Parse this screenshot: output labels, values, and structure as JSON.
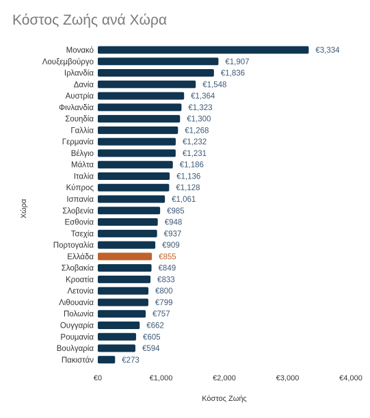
{
  "chart_data": {
    "type": "bar",
    "orientation": "horizontal",
    "title": "Κόστος Ζωής ανά Χώρα",
    "xlabel": "Κόστος Ζωής",
    "ylabel": "Χώρα",
    "xlim": [
      0,
      4000
    ],
    "x_ticks": [
      "€0",
      "€1,000",
      "€2,000",
      "€3,000",
      "€4,000"
    ],
    "grid": false,
    "colors": {
      "default": "#0f3550",
      "highlight": "#c0622b",
      "label_default": "#3d5a78",
      "label_highlight": "#c0622b"
    },
    "categories": [
      "Μονακό",
      "Λουξεμβούργο",
      "Ιρλανδία",
      "Δανία",
      "Αυστρία",
      "Φινλανδία",
      "Σουηδία",
      "Γαλλία",
      "Γερμανία",
      "Βέλγιο",
      "Μάλτα",
      "Ιταλία",
      "Κύπρος",
      "Ισπανία",
      "Σλοβενία",
      "Εσθονία",
      "Τσεχία",
      "Πορτογαλία",
      "Ελλάδα",
      "Σλοβακία",
      "Κροατία",
      "Λετονία",
      "Λιθουανία",
      "Πολωνία",
      "Ουγγαρία",
      "Ρουμανία",
      "Βουλγαρία",
      "Πακιστάν"
    ],
    "values": [
      3334,
      1907,
      1836,
      1548,
      1364,
      1323,
      1300,
      1268,
      1232,
      1231,
      1186,
      1136,
      1128,
      1061,
      985,
      948,
      937,
      909,
      855,
      849,
      833,
      800,
      799,
      757,
      662,
      605,
      594,
      273
    ],
    "value_labels": [
      "€3,334",
      "€1,907",
      "€1,836",
      "€1,548",
      "€1,364",
      "€1,323",
      "€1,300",
      "€1,268",
      "€1,232",
      "€1,231",
      "€1,186",
      "€1,136",
      "€1,128",
      "€1,061",
      "€985",
      "€948",
      "€937",
      "€909",
      "€855",
      "€849",
      "€833",
      "€800",
      "€799",
      "€757",
      "€662",
      "€605",
      "€594",
      "€273"
    ],
    "highlight": "Ελλάδα"
  }
}
